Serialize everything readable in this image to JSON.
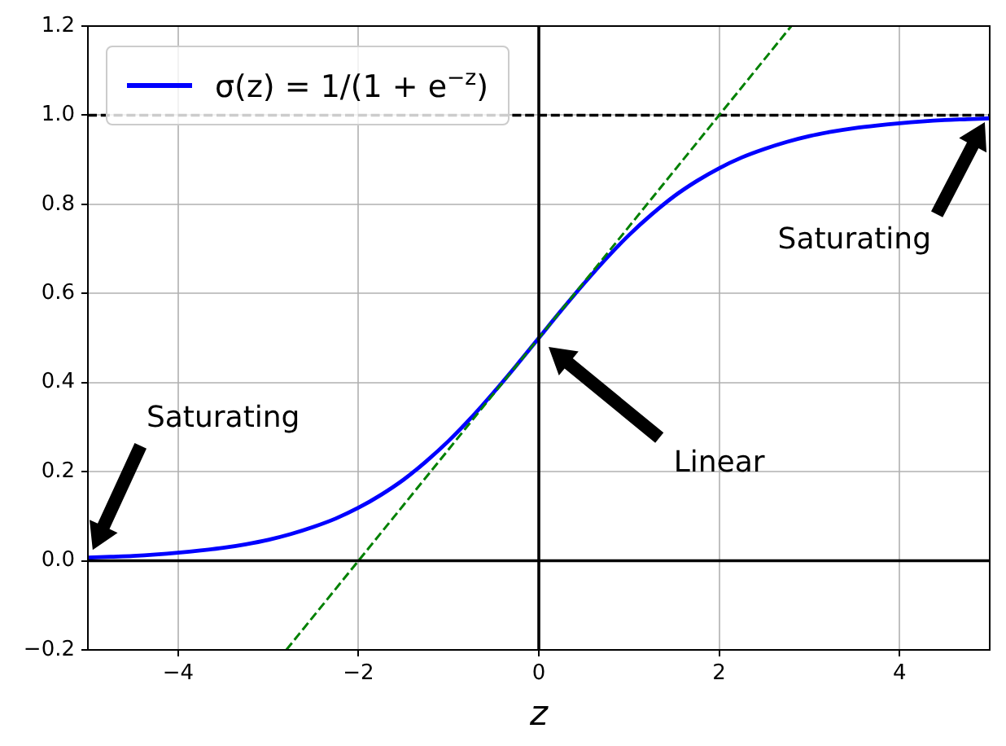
{
  "chart_data": {
    "type": "line",
    "xlabel": "z",
    "x": [
      -5,
      -4.75,
      -4.5,
      -4.25,
      -4,
      -3.75,
      -3.5,
      -3.25,
      -3,
      -2.75,
      -2.5,
      -2.25,
      -2,
      -1.75,
      -1.5,
      -1.25,
      -1,
      -0.75,
      -0.5,
      -0.25,
      0,
      0.25,
      0.5,
      0.75,
      1,
      1.25,
      1.5,
      1.75,
      2,
      2.25,
      2.5,
      2.75,
      3,
      3.25,
      3.5,
      3.75,
      4,
      4.25,
      4.5,
      4.75,
      5
    ],
    "series": [
      {
        "color": "#000000",
        "line_style": "solid",
        "x": [
          -5,
          5
        ],
        "values": [
          0,
          0
        ]
      },
      {
        "color": "#000000",
        "line_style": "solid",
        "x": [
          0,
          0
        ],
        "values": [
          -0.2,
          1.2
        ]
      },
      {
        "color": "#008000",
        "line_style": "dashed",
        "x": [
          -2.8,
          2.8
        ],
        "values": [
          -0.2,
          1.2
        ]
      },
      {
        "name": "σ(z) = 1/(1 + e$^{−z}$)",
        "color": "#0000ff",
        "line_style": "solid",
        "values": [
          0.007,
          0.009,
          0.011,
          0.014,
          0.018,
          0.023,
          0.029,
          0.037,
          0.047,
          0.06,
          0.076,
          0.095,
          0.119,
          0.148,
          0.182,
          0.223,
          0.269,
          0.321,
          0.378,
          0.438,
          0.5,
          0.562,
          0.622,
          0.679,
          0.731,
          0.777,
          0.818,
          0.852,
          0.881,
          0.905,
          0.924,
          0.94,
          0.953,
          0.963,
          0.971,
          0.977,
          0.982,
          0.986,
          0.989,
          0.991,
          0.993
        ]
      }
    ],
    "xlim": [
      -5,
      5
    ],
    "xticks": [
      {
        "value": -4,
        "label": "−4"
      },
      {
        "value": -2,
        "label": "−2"
      },
      0,
      2,
      4
    ],
    "ylim": [
      -0.2,
      1.2
    ],
    "yticks": [
      {
        "value": -0.2,
        "label": "−0.2"
      },
      {
        "value": 0,
        "label": "0.0"
      },
      0.2,
      0.4,
      0.6,
      0.8,
      {
        "value": 1,
        "label": "1.0"
      },
      1.2
    ],
    "grid": true,
    "legend": "top left",
    "ref_lines": [
      {
        "axis": "y",
        "value": 1,
        "color": "#000000",
        "line_style": "dashed"
      }
    ],
    "annotations": [
      "Saturating",
      "Saturating",
      "Linear"
    ]
  }
}
